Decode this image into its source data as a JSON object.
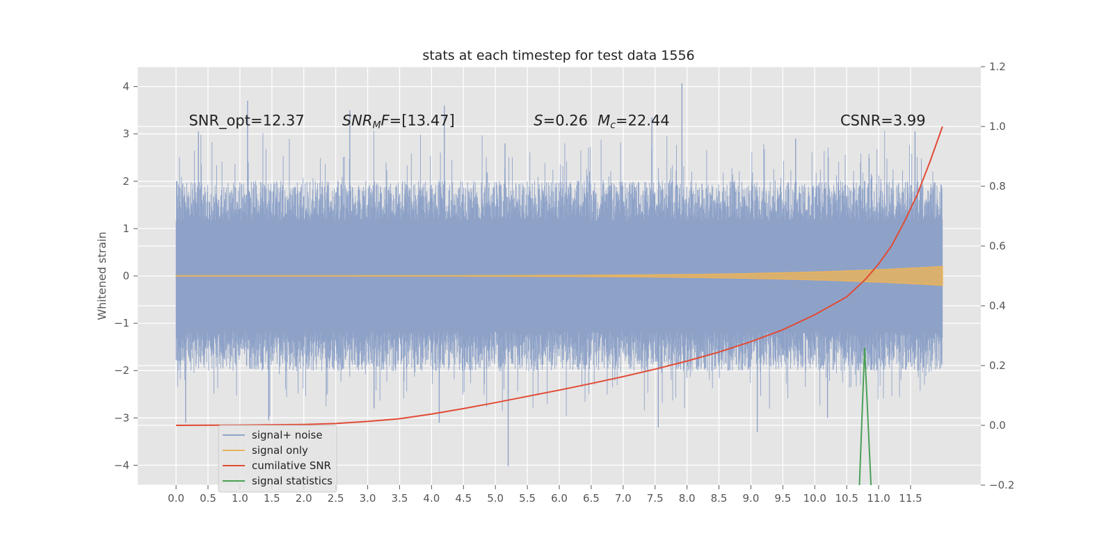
{
  "chart_data": {
    "type": "line",
    "title": "stats at each timestep for test data 1556",
    "ylabel": "Whitened strain",
    "ylabel_right": "",
    "xlabel": "",
    "xlim": [
      -0.6,
      12.6
    ],
    "ylim": [
      -4.42,
      4.42
    ],
    "ylim_right": [
      -0.2,
      1.2
    ],
    "x_ticks": [
      0.0,
      0.5,
      1.0,
      1.5,
      2.0,
      2.5,
      3.0,
      3.5,
      4.0,
      4.5,
      5.0,
      5.5,
      6.0,
      6.5,
      7.0,
      7.5,
      8.0,
      8.5,
      9.0,
      9.5,
      10.0,
      10.5,
      11.0,
      11.5
    ],
    "x_tick_labels": [
      "0.0",
      "0.5",
      "1.0",
      "1.5",
      "2.0",
      "2.5",
      "3.0",
      "3.5",
      "4.0",
      "4.5",
      "5.0",
      "5.5",
      "6.0",
      "6.5",
      "7.0",
      "7.5",
      "8.0",
      "8.5",
      "9.0",
      "9.5",
      "10.0",
      "10.5",
      "11.0",
      "11.5"
    ],
    "y_ticks": [
      -4,
      -3,
      -2,
      -1,
      0,
      1,
      2,
      3,
      4
    ],
    "y_tick_labels": [
      "−4",
      "−3",
      "−2",
      "−1",
      "0",
      "1",
      "2",
      "3",
      "4"
    ],
    "y_ticks_right": [
      -0.2,
      0.0,
      0.2,
      0.4,
      0.6,
      0.8,
      1.0,
      1.2
    ],
    "y_tick_labels_right": [
      "−0.2",
      "0.0",
      "0.2",
      "0.4",
      "0.6",
      "0.8",
      "1.0",
      "1.2"
    ],
    "grid": true,
    "legend_position": "lower-left",
    "annotations": [
      {
        "id": "snr-opt",
        "x": 0.2,
        "y": 3.3,
        "parts": [
          {
            "text": "SNR_opt=12.37"
          }
        ]
      },
      {
        "id": "snr-mf",
        "x": 2.6,
        "y": 3.3,
        "parts": [
          {
            "text": "SNR",
            "italic": true
          },
          {
            "text": "M",
            "italic": true,
            "sub": true
          },
          {
            "text": "F",
            "italic": true
          },
          {
            "text": "=[13.47]"
          }
        ]
      },
      {
        "id": "spin",
        "x": 5.6,
        "y": 3.3,
        "parts": [
          {
            "text": "S",
            "italic": true
          },
          {
            "text": "=0.26"
          }
        ]
      },
      {
        "id": "chirp-mass",
        "x": 6.6,
        "y": 3.3,
        "parts": [
          {
            "text": "M",
            "italic": true
          },
          {
            "text": "c",
            "italic": true,
            "sub": true
          },
          {
            "text": "=22.44"
          }
        ]
      },
      {
        "id": "csnr",
        "x": 10.4,
        "y": 3.3,
        "parts": [
          {
            "text": "CSNR=3.99"
          }
        ]
      }
    ],
    "series": [
      {
        "name": "signal+ noise",
        "axis": "left",
        "color": "#8ea2c8",
        "style": "noise-band",
        "x_range": [
          0.0,
          12.0
        ],
        "inner_band": [
          -0.65,
          0.65
        ],
        "typical_band": [
          -1.55,
          1.55
        ],
        "peaks": [
          {
            "x": 1.12,
            "y": 3.7
          },
          {
            "x": 0.35,
            "y": 3.05
          },
          {
            "x": 2.72,
            "y": 3.5
          },
          {
            "x": 4.2,
            "y": 3.6
          },
          {
            "x": 7.92,
            "y": 4.07
          },
          {
            "x": 7.45,
            "y": 3.35
          },
          {
            "x": 11.57,
            "y": 3.05
          },
          {
            "x": 5.15,
            "y": 2.8
          },
          {
            "x": 9.7,
            "y": 2.9
          },
          {
            "x": 1.45,
            "y": -3.05
          },
          {
            "x": 5.2,
            "y": -4.02
          },
          {
            "x": 4.12,
            "y": -3.1
          },
          {
            "x": 9.1,
            "y": -3.3
          },
          {
            "x": 7.55,
            "y": -3.2
          },
          {
            "x": 0.15,
            "y": -3.1
          },
          {
            "x": 3.1,
            "y": -2.8
          },
          {
            "x": 10.2,
            "y": -3.0
          }
        ]
      },
      {
        "name": "signal only",
        "axis": "left",
        "color": "#e8b35e",
        "style": "chirp",
        "x_range": [
          0.0,
          12.0
        ],
        "amplitude_start": 0.005,
        "amplitude_end": 0.2
      },
      {
        "name": "cumilative SNR",
        "axis": "right",
        "color": "#e24a33",
        "x": [
          0.0,
          1.0,
          2.0,
          2.5,
          3.0,
          3.5,
          4.0,
          4.5,
          5.0,
          5.5,
          6.0,
          6.5,
          7.0,
          7.5,
          8.0,
          8.5,
          9.0,
          9.5,
          10.0,
          10.5,
          10.8,
          11.0,
          11.2,
          11.4,
          11.6,
          11.8,
          12.0
        ],
        "values": [
          0.0,
          0.001,
          0.003,
          0.006,
          0.013,
          0.022,
          0.038,
          0.056,
          0.076,
          0.097,
          0.118,
          0.14,
          0.163,
          0.188,
          0.215,
          0.245,
          0.28,
          0.32,
          0.37,
          0.43,
          0.49,
          0.54,
          0.6,
          0.68,
          0.77,
          0.88,
          1.0
        ]
      },
      {
        "name": "signal statistics",
        "axis": "right",
        "color": "#348abd",
        "display_color": "#4a9f56",
        "x": [
          10.7,
          10.78,
          10.88
        ],
        "values": [
          -0.2,
          0.26,
          -0.2
        ]
      }
    ]
  }
}
